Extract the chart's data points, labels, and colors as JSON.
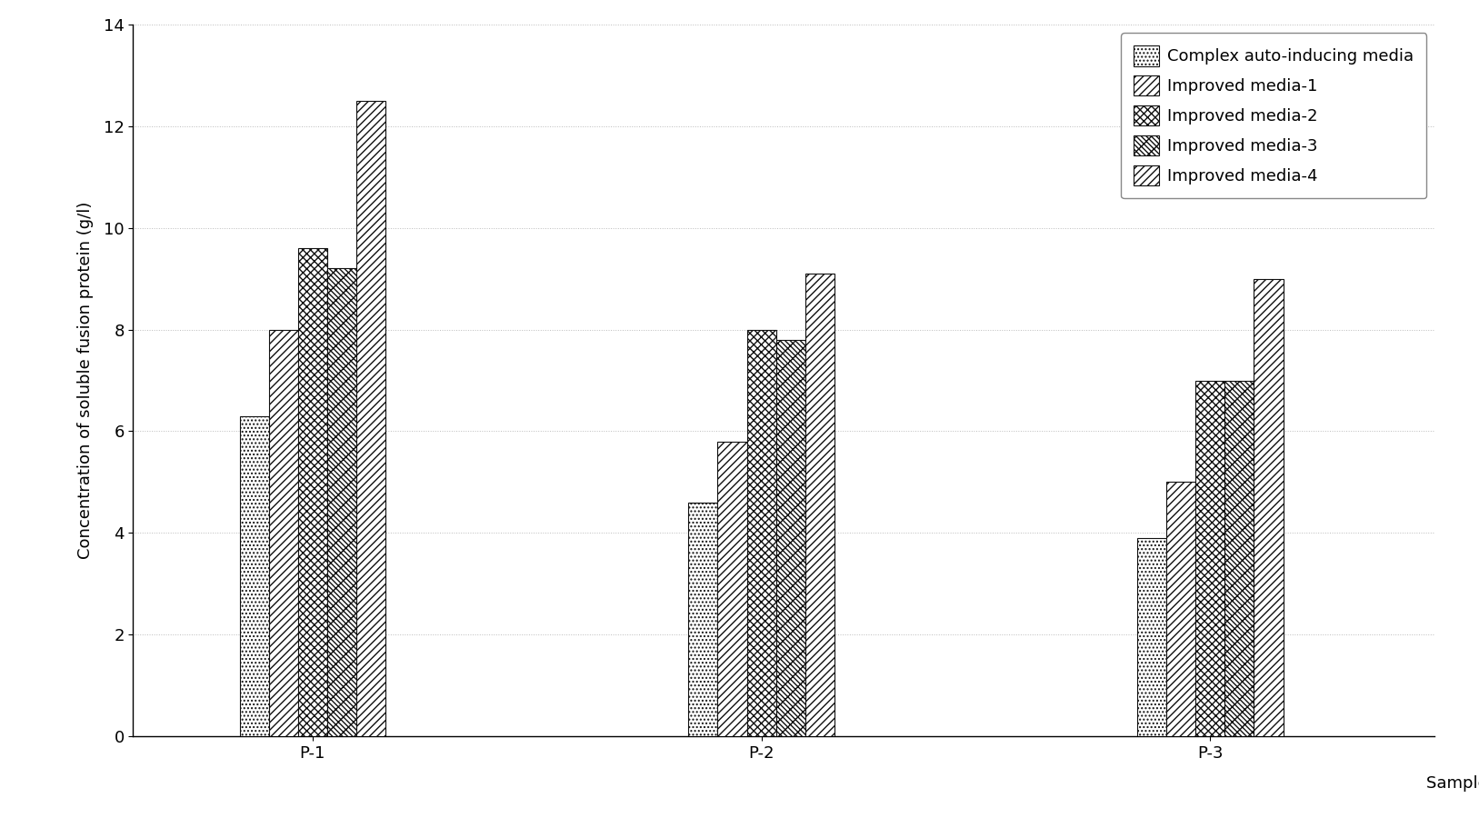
{
  "categories": [
    "P-1",
    "P-2",
    "P-3"
  ],
  "series": [
    {
      "label": "Complex auto-inducing media",
      "values": [
        6.3,
        4.6,
        3.9
      ]
    },
    {
      "label": "Improved media-1",
      "values": [
        8.0,
        5.8,
        5.0
      ]
    },
    {
      "label": "Improved media-2",
      "values": [
        9.6,
        8.0,
        7.0
      ]
    },
    {
      "label": "Improved media-3",
      "values": [
        9.2,
        7.8,
        7.0
      ]
    },
    {
      "label": "Improved media-4",
      "values": [
        12.5,
        9.1,
        9.0
      ]
    }
  ],
  "hatch_list": [
    "....",
    "////",
    "xxx",
    "xxxx",
    "////"
  ],
  "ylabel": "Concentration of soluble fusion protein (g/l)",
  "xlabel": "Sample No.",
  "ylim": [
    0,
    14
  ],
  "yticks": [
    0,
    2,
    4,
    6,
    8,
    10,
    12,
    14
  ],
  "bar_width": 0.13,
  "facecolor": "#ffffff",
  "grid_color": "#bbbbbb",
  "bar_edge_color": "#111111",
  "bar_facecolor": "#ffffff",
  "legend_fontsize": 13,
  "axis_label_fontsize": 13,
  "tick_fontsize": 13,
  "group_centers": [
    1.0,
    3.0,
    5.0
  ],
  "xlim": [
    0.2,
    6.0
  ]
}
